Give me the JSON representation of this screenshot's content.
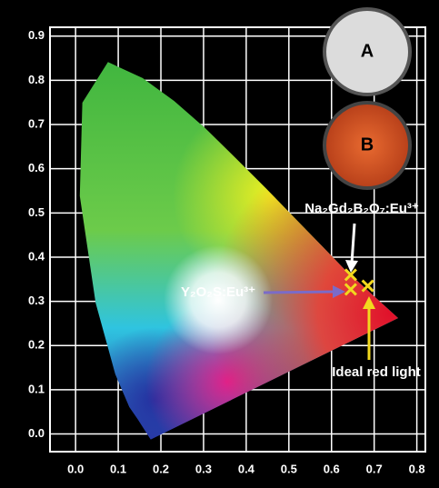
{
  "chart_data": {
    "type": "scatter",
    "x": [
      0.645,
      0.645,
      0.685
    ],
    "y": [
      0.36,
      0.327,
      0.335
    ],
    "color": "#f2d81e",
    "xlim": [
      -0.06,
      0.82
    ],
    "ylim": [
      -0.04,
      0.92
    ],
    "xticks": [
      {
        "value": 0,
        "label": "0.0"
      },
      0.1,
      0.2,
      0.3,
      0.4,
      0.5,
      0.6,
      0.7,
      0.8
    ],
    "yticks": [
      {
        "value": 0,
        "label": "0.0"
      },
      0.1,
      0.2,
      0.3,
      0.4,
      0.5,
      0.6,
      0.7,
      0.8,
      0.9
    ],
    "grid": true,
    "annotations": [
      "Na₂Gd₂B₂O₇:Eu³⁺",
      "Y₂O₂S:Eu³⁺",
      "Ideal red light"
    ],
    "insets": [
      "A",
      "B"
    ]
  }
}
